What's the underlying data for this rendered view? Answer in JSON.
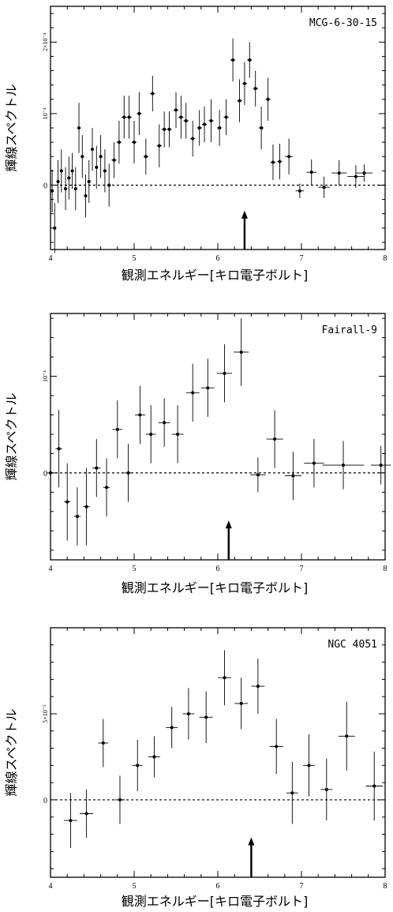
{
  "chart_data": [
    {
      "type": "scatter",
      "object_label": "MCG-6-30-15",
      "xlabel": "観測エネルギー[キロ電子ボルト]",
      "ylabel": "輝線スペクトル",
      "xlim": [
        4,
        8
      ],
      "ylim": [
        -9e-05,
        0.00025
      ],
      "xticks": [
        "4",
        "5",
        "6",
        "7",
        "8"
      ],
      "yticks": [
        {
          "value": 0,
          "label": "0"
        },
        {
          "value": 0.0001,
          "label": "10⁻⁴"
        },
        {
          "value": 0.0002,
          "label": "2×10⁻⁴"
        }
      ],
      "arrow_x": 6.32,
      "points": [
        {
          "x": 4.02,
          "y": -8e-06,
          "ex": 0.02,
          "ey": 3e-05
        },
        {
          "x": 4.05,
          "y": -6e-05,
          "ex": 0.02,
          "ey": 3.5e-05
        },
        {
          "x": 4.09,
          "y": 5e-06,
          "ex": 0.02,
          "ey": 3e-05
        },
        {
          "x": 4.13,
          "y": 2e-05,
          "ex": 0.02,
          "ey": 3e-05
        },
        {
          "x": 4.18,
          "y": -5e-06,
          "ex": 0.02,
          "ey": 3e-05
        },
        {
          "x": 4.22,
          "y": 1e-05,
          "ex": 0.02,
          "ey": 3e-05
        },
        {
          "x": 4.26,
          "y": 2e-05,
          "ex": 0.02,
          "ey": 2.5e-05
        },
        {
          "x": 4.3,
          "y": -5e-06,
          "ex": 0.02,
          "ey": 3e-05
        },
        {
          "x": 4.34,
          "y": 8e-05,
          "ex": 0.02,
          "ey": 3.5e-05
        },
        {
          "x": 4.38,
          "y": 4e-05,
          "ex": 0.02,
          "ey": 3e-05
        },
        {
          "x": 4.42,
          "y": -1.5e-05,
          "ex": 0.02,
          "ey": 3e-05
        },
        {
          "x": 4.46,
          "y": 5e-06,
          "ex": 0.02,
          "ey": 3e-05
        },
        {
          "x": 4.5,
          "y": 5e-05,
          "ex": 0.02,
          "ey": 3e-05
        },
        {
          "x": 4.55,
          "y": 2.5e-05,
          "ex": 0.02,
          "ey": 3e-05
        },
        {
          "x": 4.6,
          "y": 4e-05,
          "ex": 0.02,
          "ey": 3e-05
        },
        {
          "x": 4.65,
          "y": 2e-05,
          "ex": 0.02,
          "ey": 3e-05
        },
        {
          "x": 4.7,
          "y": 0.0,
          "ex": 0.02,
          "ey": 3e-05
        },
        {
          "x": 4.76,
          "y": 3.5e-05,
          "ex": 0.03,
          "ey": 2.5e-05
        },
        {
          "x": 4.82,
          "y": 6e-05,
          "ex": 0.03,
          "ey": 3e-05
        },
        {
          "x": 4.88,
          "y": 9.5e-05,
          "ex": 0.03,
          "ey": 3e-05
        },
        {
          "x": 4.94,
          "y": 9.5e-05,
          "ex": 0.03,
          "ey": 3e-05
        },
        {
          "x": 5.0,
          "y": 6e-05,
          "ex": 0.03,
          "ey": 3e-05
        },
        {
          "x": 5.06,
          "y": 0.0001,
          "ex": 0.03,
          "ey": 3e-05
        },
        {
          "x": 5.14,
          "y": 4e-05,
          "ex": 0.03,
          "ey": 2.5e-05
        },
        {
          "x": 5.22,
          "y": 0.000128,
          "ex": 0.03,
          "ey": 2.5e-05
        },
        {
          "x": 5.3,
          "y": 5.5e-05,
          "ex": 0.03,
          "ey": 3e-05
        },
        {
          "x": 5.36,
          "y": 7.8e-05,
          "ex": 0.03,
          "ey": 2.5e-05
        },
        {
          "x": 5.42,
          "y": 7.8e-05,
          "ex": 0.03,
          "ey": 2.5e-05
        },
        {
          "x": 5.5,
          "y": 0.000105,
          "ex": 0.03,
          "ey": 2.5e-05
        },
        {
          "x": 5.56,
          "y": 9.5e-05,
          "ex": 0.03,
          "ey": 3e-05
        },
        {
          "x": 5.62,
          "y": 9e-05,
          "ex": 0.03,
          "ey": 2.5e-05
        },
        {
          "x": 5.7,
          "y": 6.5e-05,
          "ex": 0.03,
          "ey": 2.5e-05
        },
        {
          "x": 5.78,
          "y": 8e-05,
          "ex": 0.03,
          "ey": 2.5e-05
        },
        {
          "x": 5.84,
          "y": 8.5e-05,
          "ex": 0.03,
          "ey": 2.5e-05
        },
        {
          "x": 5.92,
          "y": 9e-05,
          "ex": 0.03,
          "ey": 3e-05
        },
        {
          "x": 6.02,
          "y": 8e-05,
          "ex": 0.03,
          "ey": 2.5e-05
        },
        {
          "x": 6.1,
          "y": 9.5e-05,
          "ex": 0.03,
          "ey": 2.5e-05
        },
        {
          "x": 6.18,
          "y": 0.000175,
          "ex": 0.03,
          "ey": 3e-05
        },
        {
          "x": 6.26,
          "y": 0.000118,
          "ex": 0.03,
          "ey": 3e-05
        },
        {
          "x": 6.32,
          "y": 0.000142,
          "ex": 0.03,
          "ey": 3e-05
        },
        {
          "x": 6.38,
          "y": 0.000175,
          "ex": 0.03,
          "ey": 2.5e-05
        },
        {
          "x": 6.45,
          "y": 0.000135,
          "ex": 0.03,
          "ey": 2.5e-05
        },
        {
          "x": 6.52,
          "y": 8e-05,
          "ex": 0.03,
          "ey": 3e-05
        },
        {
          "x": 6.6,
          "y": 0.00012,
          "ex": 0.03,
          "ey": 3e-05
        },
        {
          "x": 6.66,
          "y": 3.2e-05,
          "ex": 0.03,
          "ey": 2.5e-05
        },
        {
          "x": 6.74,
          "y": 3.3e-05,
          "ex": 0.03,
          "ey": 2.5e-05
        },
        {
          "x": 6.85,
          "y": 4e-05,
          "ex": 0.05,
          "ey": 2.5e-05
        },
        {
          "x": 6.98,
          "y": -8e-06,
          "ex": 0.05,
          "ey": 1e-05
        },
        {
          "x": 7.12,
          "y": 1.8e-05,
          "ex": 0.06,
          "ey": 1.8e-05
        },
        {
          "x": 7.27,
          "y": -3e-06,
          "ex": 0.07,
          "ey": 1.5e-05
        },
        {
          "x": 7.45,
          "y": 1.7e-05,
          "ex": 0.09,
          "ey": 1.8e-05
        },
        {
          "x": 7.65,
          "y": 1.2e-05,
          "ex": 0.1,
          "ey": 1.6e-05
        },
        {
          "x": 7.75,
          "y": 1.7e-05,
          "ex": 0.1,
          "ey": 1.2e-05
        }
      ]
    },
    {
      "type": "scatter",
      "object_label": "Fairall-9",
      "xlabel": "観測エネルギー[キロ電子ボルト]",
      "ylabel": "輝線スペクトル",
      "xlim": [
        4,
        8
      ],
      "ylim": [
        -9e-05,
        0.000165
      ],
      "xticks": [
        "4",
        "5",
        "6",
        "7",
        "8"
      ],
      "yticks": [
        {
          "value": 0,
          "label": "0"
        },
        {
          "value": 0.0001,
          "label": "10⁻⁴"
        }
      ],
      "arrow_x": 6.13,
      "points": [
        {
          "x": 4.0,
          "y": 0.0,
          "ex": 0.04,
          "ey": 3e-05
        },
        {
          "x": 4.1,
          "y": 2.5e-05,
          "ex": 0.04,
          "ey": 4e-05
        },
        {
          "x": 4.2,
          "y": -3e-05,
          "ex": 0.04,
          "ey": 4e-05
        },
        {
          "x": 4.32,
          "y": -4.5e-05,
          "ex": 0.04,
          "ey": 3e-05
        },
        {
          "x": 4.43,
          "y": -3.5e-05,
          "ex": 0.04,
          "ey": 4e-05
        },
        {
          "x": 4.55,
          "y": 5e-06,
          "ex": 0.05,
          "ey": 3e-05
        },
        {
          "x": 4.67,
          "y": -1.5e-05,
          "ex": 0.04,
          "ey": 3e-05
        },
        {
          "x": 4.8,
          "y": 4.5e-05,
          "ex": 0.06,
          "ey": 3e-05
        },
        {
          "x": 4.93,
          "y": 0.0,
          "ex": 0.05,
          "ey": 3e-05
        },
        {
          "x": 5.07,
          "y": 6e-05,
          "ex": 0.06,
          "ey": 3e-05
        },
        {
          "x": 5.2,
          "y": 4e-05,
          "ex": 0.06,
          "ey": 3e-05
        },
        {
          "x": 5.36,
          "y": 5.2e-05,
          "ex": 0.07,
          "ey": 2.5e-05
        },
        {
          "x": 5.52,
          "y": 4e-05,
          "ex": 0.07,
          "ey": 3e-05
        },
        {
          "x": 5.7,
          "y": 8.3e-05,
          "ex": 0.08,
          "ey": 3e-05
        },
        {
          "x": 5.88,
          "y": 8.8e-05,
          "ex": 0.08,
          "ey": 3e-05
        },
        {
          "x": 6.08,
          "y": 0.000103,
          "ex": 0.09,
          "ey": 3e-05
        },
        {
          "x": 6.28,
          "y": 0.000125,
          "ex": 0.09,
          "ey": 3.5e-05
        },
        {
          "x": 6.48,
          "y": -2e-06,
          "ex": 0.09,
          "ey": 1.8e-05
        },
        {
          "x": 6.68,
          "y": 3.5e-05,
          "ex": 0.1,
          "ey": 3e-05
        },
        {
          "x": 6.9,
          "y": -3e-06,
          "ex": 0.1,
          "ey": 2.5e-05
        },
        {
          "x": 7.15,
          "y": 1e-05,
          "ex": 0.12,
          "ey": 2.5e-05
        },
        {
          "x": 7.5,
          "y": 8e-06,
          "ex": 0.25,
          "ey": 2.5e-05
        },
        {
          "x": 7.95,
          "y": 8e-06,
          "ex": 0.12,
          "ey": 2e-05
        }
      ]
    },
    {
      "type": "scatter",
      "object_label": "NGC 4051",
      "xlabel": "観測エネルギー[キロ電子ボルト]",
      "ylabel": "輝線スペクトル",
      "xlim": [
        4,
        8
      ],
      "ylim": [
        -4.5e-05,
        0.0001
      ],
      "xticks": [
        "4",
        "5",
        "6",
        "7",
        "8"
      ],
      "yticks": [
        {
          "value": 0,
          "label": "0"
        },
        {
          "value": 5e-05,
          "label": "5×10⁻⁵"
        }
      ],
      "arrow_x": 6.4,
      "points": [
        {
          "x": 4.24,
          "y": -1.2e-05,
          "ex": 0.08,
          "ey": 1.6e-05
        },
        {
          "x": 4.43,
          "y": -8e-06,
          "ex": 0.08,
          "ey": 1.4e-05
        },
        {
          "x": 4.63,
          "y": 3.3e-05,
          "ex": 0.06,
          "ey": 1.4e-05
        },
        {
          "x": 4.83,
          "y": 0.0,
          "ex": 0.06,
          "ey": 1.4e-05
        },
        {
          "x": 5.04,
          "y": 2e-05,
          "ex": 0.06,
          "ey": 1.5e-05
        },
        {
          "x": 5.24,
          "y": 2.5e-05,
          "ex": 0.07,
          "ey": 1.2e-05
        },
        {
          "x": 5.45,
          "y": 4.2e-05,
          "ex": 0.07,
          "ey": 1.2e-05
        },
        {
          "x": 5.65,
          "y": 5e-05,
          "ex": 0.07,
          "ey": 1.5e-05
        },
        {
          "x": 5.86,
          "y": 4.8e-05,
          "ex": 0.08,
          "ey": 1.5e-05
        },
        {
          "x": 6.08,
          "y": 7.1e-05,
          "ex": 0.08,
          "ey": 1.6e-05
        },
        {
          "x": 6.28,
          "y": 5.6e-05,
          "ex": 0.08,
          "ey": 1.5e-05
        },
        {
          "x": 6.48,
          "y": 6.6e-05,
          "ex": 0.08,
          "ey": 1.6e-05
        },
        {
          "x": 6.7,
          "y": 3.1e-05,
          "ex": 0.08,
          "ey": 1.6e-05
        },
        {
          "x": 6.89,
          "y": 4e-06,
          "ex": 0.07,
          "ey": 1.8e-05
        },
        {
          "x": 7.09,
          "y": 2e-05,
          "ex": 0.07,
          "ey": 1.8e-05
        },
        {
          "x": 7.3,
          "y": 6e-06,
          "ex": 0.07,
          "ey": 1.8e-05
        },
        {
          "x": 7.54,
          "y": 3.7e-05,
          "ex": 0.1,
          "ey": 2e-05
        },
        {
          "x": 7.87,
          "y": 8e-06,
          "ex": 0.1,
          "ey": 2e-05
        }
      ]
    }
  ]
}
